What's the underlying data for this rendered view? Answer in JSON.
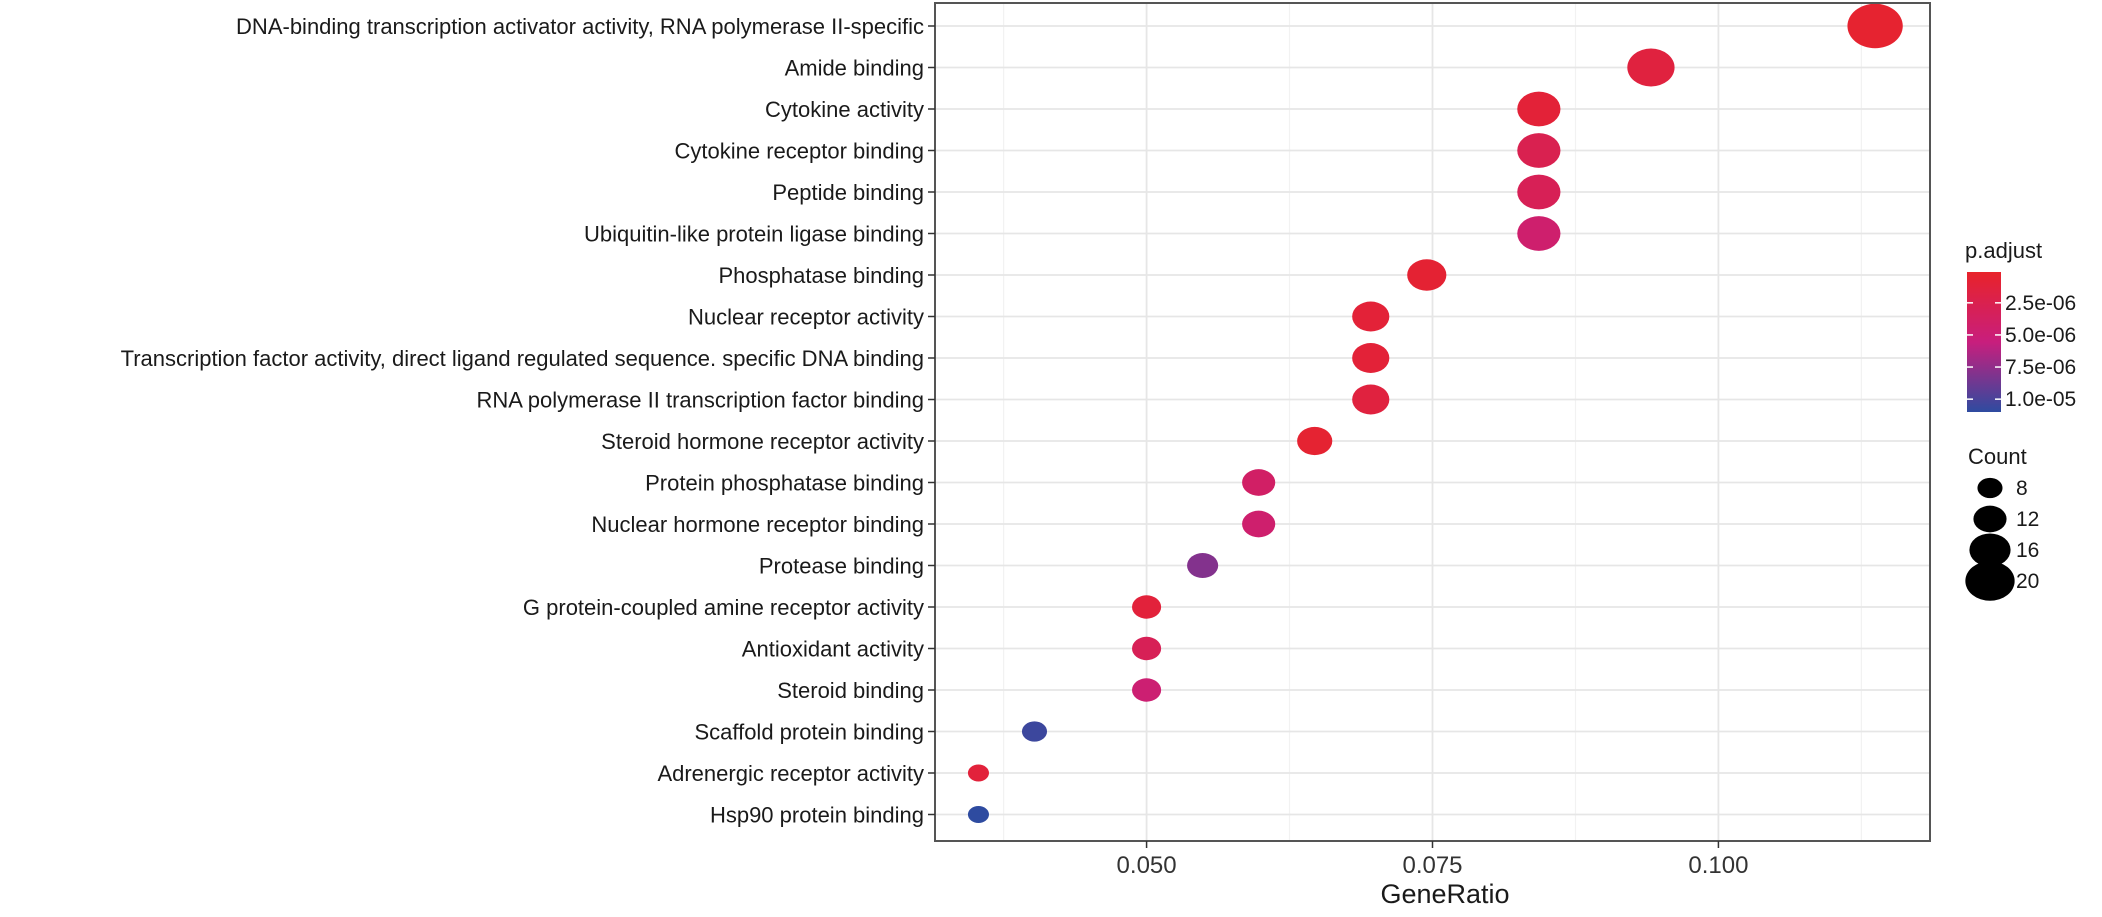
{
  "chart_data": {
    "type": "scatter",
    "xlabel": "GeneRatio",
    "ylabel": "",
    "xlim": [
      0.0315,
      0.1185
    ],
    "xticks": [
      0.05,
      0.075,
      0.1
    ],
    "xtick_labels": [
      "0.050",
      "0.075",
      "0.100"
    ],
    "minor_xticks": [
      0.0375,
      0.0625,
      0.0875,
      0.1125
    ],
    "grid": true,
    "legend_position": "right",
    "color_legend": {
      "title": "p.adjust",
      "ticks": [
        2.5e-06,
        5e-06,
        7.5e-06,
        1e-05
      ],
      "tick_labels": [
        "2.5e-06",
        "5.0e-06",
        "7.5e-06",
        "1.0e-05"
      ],
      "range": [
        1e-07,
        1.1e-05
      ],
      "low_color": "#e8232a",
      "high_color": "#2e4ba0"
    },
    "size_legend": {
      "title": "Count",
      "values": [
        8,
        12,
        16,
        20
      ],
      "labels": [
        "8",
        "12",
        "16",
        "20"
      ]
    },
    "points": [
      {
        "term": "DNA-binding transcription activator activity, RNA polymerase II-specific",
        "gene_ratio": 0.1137,
        "count": 23,
        "p_adjust": 5e-07
      },
      {
        "term": "Amide binding",
        "gene_ratio": 0.0941,
        "count": 19,
        "p_adjust": 1.5e-06
      },
      {
        "term": "Cytokine activity",
        "gene_ratio": 0.0843,
        "count": 17,
        "p_adjust": 1e-06
      },
      {
        "term": "Cytokine receptor binding",
        "gene_ratio": 0.0843,
        "count": 17,
        "p_adjust": 2.6e-06
      },
      {
        "term": "Peptide binding",
        "gene_ratio": 0.0843,
        "count": 17,
        "p_adjust": 3e-06
      },
      {
        "term": "Ubiquitin-like protein ligase binding",
        "gene_ratio": 0.0843,
        "count": 17,
        "p_adjust": 4.5e-06
      },
      {
        "term": "Phosphatase binding",
        "gene_ratio": 0.0745,
        "count": 15,
        "p_adjust": 7e-07
      },
      {
        "term": "Nuclear receptor activity",
        "gene_ratio": 0.0696,
        "count": 14,
        "p_adjust": 1e-06
      },
      {
        "term": "Transcription factor activity, direct ligand regulated sequence. specific DNA binding",
        "gene_ratio": 0.0696,
        "count": 14,
        "p_adjust": 1e-06
      },
      {
        "term": "RNA polymerase II transcription factor binding",
        "gene_ratio": 0.0696,
        "count": 14,
        "p_adjust": 1.5e-06
      },
      {
        "term": "Steroid hormone receptor activity",
        "gene_ratio": 0.0647,
        "count": 13,
        "p_adjust": 6e-07
      },
      {
        "term": "Protein phosphatase binding",
        "gene_ratio": 0.0598,
        "count": 12,
        "p_adjust": 4e-06
      },
      {
        "term": "Nuclear hormone receptor binding",
        "gene_ratio": 0.0598,
        "count": 12,
        "p_adjust": 4.5e-06
      },
      {
        "term": "Protease binding",
        "gene_ratio": 0.0549,
        "count": 11,
        "p_adjust": 8e-06
      },
      {
        "term": "G protein-coupled amine receptor activity",
        "gene_ratio": 0.05,
        "count": 10,
        "p_adjust": 1.2e-06
      },
      {
        "term": "Antioxidant activity",
        "gene_ratio": 0.05,
        "count": 10,
        "p_adjust": 3e-06
      },
      {
        "term": "Steroid binding",
        "gene_ratio": 0.05,
        "count": 10,
        "p_adjust": 4.8e-06
      },
      {
        "term": "Scaffold protein binding",
        "gene_ratio": 0.0402,
        "count": 8,
        "p_adjust": 1.05e-05
      },
      {
        "term": "Adrenergic receptor activity",
        "gene_ratio": 0.0353,
        "count": 6,
        "p_adjust": 1.2e-06
      },
      {
        "term": "Hsp90 protein binding",
        "gene_ratio": 0.0353,
        "count": 6,
        "p_adjust": 1.1e-05
      }
    ]
  }
}
